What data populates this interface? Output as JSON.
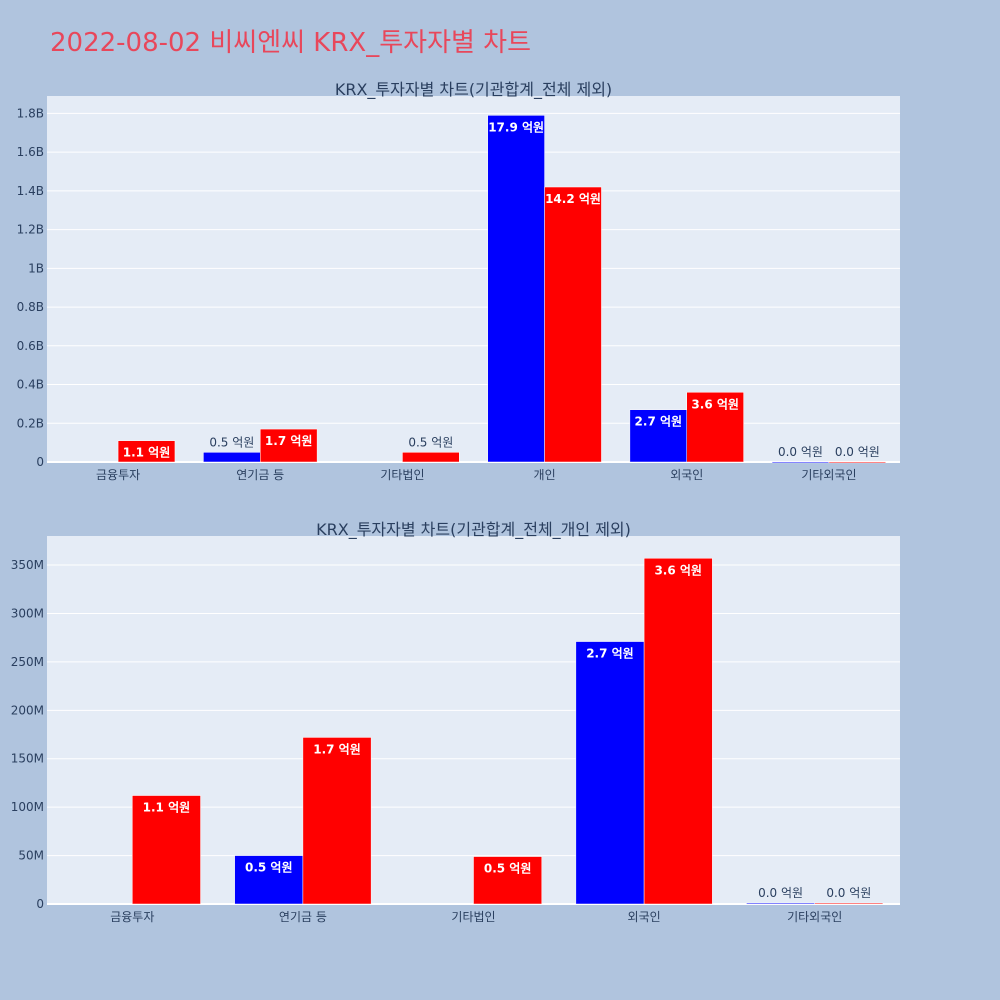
{
  "page": {
    "title": "2022-08-02 비씨엔씨 KRX_투자자별 차트"
  },
  "colors": {
    "background": "#b0c4de",
    "plot_background": "#e5ecf6",
    "grid": "#ffffff",
    "title": "#e8475b",
    "buy": "#0000ff",
    "sell": "#ff0000",
    "axis_text": "#2a3f5f"
  },
  "chart_data": [
    {
      "type": "bar",
      "title": "KRX_투자자별 차트(기관합계_전체 제외)",
      "categories": [
        "금융투자",
        "연기금 등",
        "기타법인",
        "개인",
        "외국인",
        "기타외국인"
      ],
      "series": [
        {
          "color": "#0000ff",
          "values": [
            0,
            50000000,
            0,
            1790000000,
            270000000,
            1000000
          ],
          "labels": [
            "",
            "0.5 억원",
            "",
            "17.9 억원",
            "2.7 억원",
            "0.0 억원"
          ]
        },
        {
          "color": "#ff0000",
          "values": [
            110000000,
            170000000,
            50000000,
            1420000000,
            360000000,
            1000000
          ],
          "labels": [
            "1.1 억원",
            "1.7 억원",
            "0.5 억원",
            "14.2 억원",
            "3.6 억원",
            "0.0 억원"
          ]
        }
      ],
      "ylim": [
        0,
        1890000000
      ],
      "yticks": [
        0,
        200000000,
        400000000,
        600000000,
        800000000,
        1000000000,
        1200000000,
        1400000000,
        1600000000,
        1800000000
      ],
      "ytick_labels": [
        "0",
        "0.2B",
        "0.4B",
        "0.6B",
        "0.8B",
        "1B",
        "1.2B",
        "1.4B",
        "1.6B",
        "1.8B"
      ],
      "grid": true
    },
    {
      "type": "bar",
      "title": "KRX_투자자별 차트(기관합계_전체_개인 제외)",
      "categories": [
        "금융투자",
        "연기금 등",
        "기타법인",
        "외국인",
        "기타외국인"
      ],
      "series": [
        {
          "color": "#0000ff",
          "values": [
            0,
            50000000,
            0,
            271000000,
            1000000
          ],
          "labels": [
            "",
            "0.5 억원",
            "",
            "2.7 억원",
            "0.0 억원"
          ]
        },
        {
          "color": "#ff0000",
          "values": [
            112000000,
            172000000,
            49000000,
            357000000,
            1000000
          ],
          "labels": [
            "1.1 억원",
            "1.7 억원",
            "0.5 억원",
            "3.6 억원",
            "0.0 억원"
          ]
        }
      ],
      "ylim": [
        0,
        380000000
      ],
      "yticks": [
        0,
        50000000,
        100000000,
        150000000,
        200000000,
        250000000,
        300000000,
        350000000
      ],
      "ytick_labels": [
        "0",
        "50M",
        "100M",
        "150M",
        "200M",
        "250M",
        "300M",
        "350M"
      ],
      "grid": true
    }
  ]
}
